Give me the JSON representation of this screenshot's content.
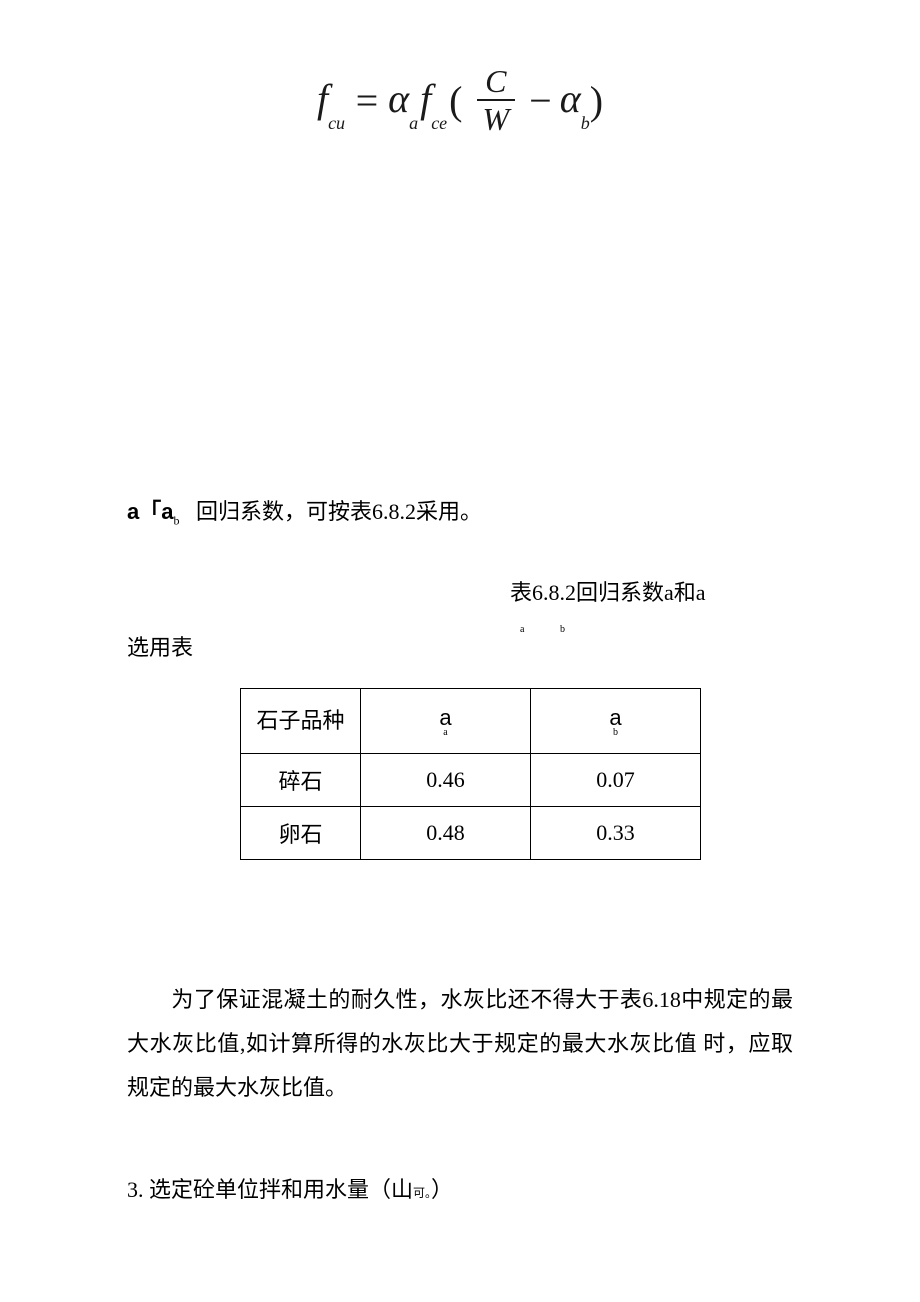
{
  "formula": {
    "lhs_sym": "f",
    "lhs_sub": "cu",
    "eq": "=",
    "alpha": "α",
    "alpha_a_sub": "a",
    "f2_sym": "f",
    "f2_sub": "ce",
    "lparen": "(",
    "frac_num": "C",
    "frac_den": "W",
    "minus": "−",
    "alpha_b_sub": "b",
    "rparen": ")"
  },
  "line1": {
    "prefix": "a「a",
    "sub": "b",
    "suffix": "   回归系数，可按表6.8.2采用。"
  },
  "caption": {
    "text": "表6.8.2回归系数a和a",
    "sub_a": "a",
    "sub_b": "b"
  },
  "line2": "选用表",
  "table": {
    "header": {
      "c1": "石子品种",
      "c2": "a",
      "c2_sub": "a",
      "c3": "a",
      "c3_sub": "b"
    },
    "rows": [
      {
        "c1": "碎石",
        "c2": "0.46",
        "c3": "0.07"
      },
      {
        "c1": "卵石",
        "c2": "0.48",
        "c3": "0.33"
      }
    ]
  },
  "paragraph": "为了保证混凝土的耐久性，水灰比还不得大于表6.18中规定的最大水灰比值,如计算所得的水灰比大于规定的最大水灰比值 时，应取规定的最大水灰比值。",
  "section3": {
    "num": "3.",
    "text": " 选定砼单位拌和用水量（山",
    "sub": "可。",
    "end": "）"
  },
  "colors": {
    "background": "#ffffff",
    "text": "#000000",
    "formula_text": "#1a1a1a",
    "border": "#000000"
  },
  "fonts": {
    "body": "SimSun",
    "formula": "Times New Roman",
    "sans": "Arial"
  }
}
